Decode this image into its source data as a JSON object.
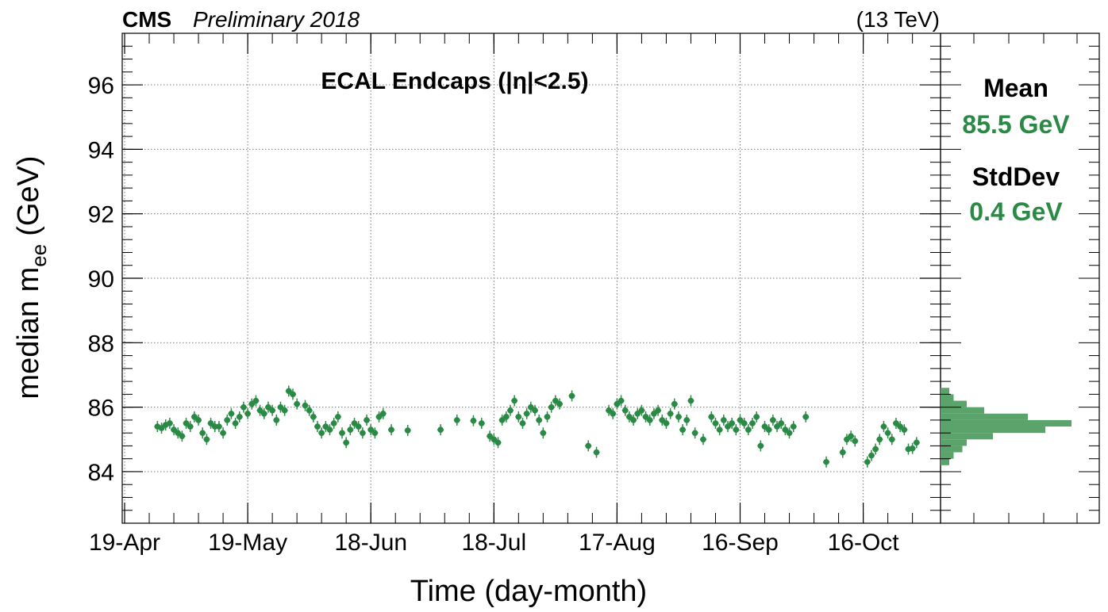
{
  "header": {
    "experiment": "CMS",
    "status": "Preliminary 2018",
    "energy": "(13 TeV)"
  },
  "chart_data": {
    "type": "scatter",
    "title": "ECAL Endcaps (|η|<2.5)",
    "xlabel": "Time (day-month)",
    "ylabel_main": "median m",
    "ylabel_sub": "ee",
    "ylabel_unit": "(GeV)",
    "x_ticks": [
      {
        "date": "2018-04-19",
        "label": "19-Apr"
      },
      {
        "date": "2018-05-19",
        "label": "19-May"
      },
      {
        "date": "2018-06-18",
        "label": "18-Jun"
      },
      {
        "date": "2018-07-18",
        "label": "18-Jul"
      },
      {
        "date": "2018-08-17",
        "label": "17-Aug"
      },
      {
        "date": "2018-09-16",
        "label": "16-Sep"
      },
      {
        "date": "2018-10-16",
        "label": "16-Oct"
      }
    ],
    "xlim": [
      "2018-04-19",
      "2018-10-29"
    ],
    "ylim": [
      82.4,
      97.6
    ],
    "y_ticks": [
      84,
      86,
      88,
      90,
      92,
      94,
      96
    ],
    "grid": true,
    "series": [
      {
        "color": "#2a8a45",
        "points": [
          {
            "x": "2018-04-27",
            "y": 85.4
          },
          {
            "x": "2018-04-28",
            "y": 85.35
          },
          {
            "x": "2018-04-29",
            "y": 85.45
          },
          {
            "x": "2018-04-30",
            "y": 85.5
          },
          {
            "x": "2018-05-01",
            "y": 85.3
          },
          {
            "x": "2018-05-02",
            "y": 85.2
          },
          {
            "x": "2018-05-03",
            "y": 85.1
          },
          {
            "x": "2018-05-04",
            "y": 85.5
          },
          {
            "x": "2018-05-05",
            "y": 85.4
          },
          {
            "x": "2018-05-06",
            "y": 85.7
          },
          {
            "x": "2018-05-07",
            "y": 85.6
          },
          {
            "x": "2018-05-08",
            "y": 85.2
          },
          {
            "x": "2018-05-09",
            "y": 85.0
          },
          {
            "x": "2018-05-10",
            "y": 85.5
          },
          {
            "x": "2018-05-11",
            "y": 85.4
          },
          {
            "x": "2018-05-12",
            "y": 85.4
          },
          {
            "x": "2018-05-13",
            "y": 85.2
          },
          {
            "x": "2018-05-14",
            "y": 85.6
          },
          {
            "x": "2018-05-15",
            "y": 85.8
          },
          {
            "x": "2018-05-16",
            "y": 85.5
          },
          {
            "x": "2018-05-17",
            "y": 85.7
          },
          {
            "x": "2018-05-18",
            "y": 86.0
          },
          {
            "x": "2018-05-19",
            "y": 85.8
          },
          {
            "x": "2018-05-20",
            "y": 86.1
          },
          {
            "x": "2018-05-21",
            "y": 86.2
          },
          {
            "x": "2018-05-22",
            "y": 85.9
          },
          {
            "x": "2018-05-23",
            "y": 85.8
          },
          {
            "x": "2018-05-24",
            "y": 86.0
          },
          {
            "x": "2018-05-25",
            "y": 85.9
          },
          {
            "x": "2018-05-26",
            "y": 85.6
          },
          {
            "x": "2018-05-27",
            "y": 86.0
          },
          {
            "x": "2018-05-28",
            "y": 85.9
          },
          {
            "x": "2018-05-29",
            "y": 86.5
          },
          {
            "x": "2018-05-30",
            "y": 86.4
          },
          {
            "x": "2018-05-31",
            "y": 86.1
          },
          {
            "x": "2018-06-02",
            "y": 86.05
          },
          {
            "x": "2018-06-03",
            "y": 85.9
          },
          {
            "x": "2018-06-04",
            "y": 85.7
          },
          {
            "x": "2018-06-05",
            "y": 85.4
          },
          {
            "x": "2018-06-06",
            "y": 85.2
          },
          {
            "x": "2018-06-07",
            "y": 85.4
          },
          {
            "x": "2018-06-08",
            "y": 85.3
          },
          {
            "x": "2018-06-09",
            "y": 85.5
          },
          {
            "x": "2018-06-10",
            "y": 85.7
          },
          {
            "x": "2018-06-11",
            "y": 85.2
          },
          {
            "x": "2018-06-12",
            "y": 84.9
          },
          {
            "x": "2018-06-13",
            "y": 85.3
          },
          {
            "x": "2018-06-14",
            "y": 85.5
          },
          {
            "x": "2018-06-15",
            "y": 85.4
          },
          {
            "x": "2018-06-16",
            "y": 85.2
          },
          {
            "x": "2018-06-17",
            "y": 85.6
          },
          {
            "x": "2018-06-18",
            "y": 85.3
          },
          {
            "x": "2018-06-19",
            "y": 85.2
          },
          {
            "x": "2018-06-20",
            "y": 85.7
          },
          {
            "x": "2018-06-21",
            "y": 85.8
          },
          {
            "x": "2018-06-23",
            "y": 85.3
          },
          {
            "x": "2018-06-27",
            "y": 85.28
          },
          {
            "x": "2018-07-05",
            "y": 85.3
          },
          {
            "x": "2018-07-09",
            "y": 85.6
          },
          {
            "x": "2018-07-13",
            "y": 85.58
          },
          {
            "x": "2018-07-15",
            "y": 85.5
          },
          {
            "x": "2018-07-17",
            "y": 85.1
          },
          {
            "x": "2018-07-18",
            "y": 85.0
          },
          {
            "x": "2018-07-19",
            "y": 84.9
          },
          {
            "x": "2018-07-20",
            "y": 85.6
          },
          {
            "x": "2018-07-21",
            "y": 85.7
          },
          {
            "x": "2018-07-22",
            "y": 85.9
          },
          {
            "x": "2018-07-23",
            "y": 86.2
          },
          {
            "x": "2018-07-24",
            "y": 85.7
          },
          {
            "x": "2018-07-25",
            "y": 85.5
          },
          {
            "x": "2018-07-26",
            "y": 85.8
          },
          {
            "x": "2018-07-27",
            "y": 86.0
          },
          {
            "x": "2018-07-28",
            "y": 85.9
          },
          {
            "x": "2018-07-29",
            "y": 85.6
          },
          {
            "x": "2018-07-30",
            "y": 85.2
          },
          {
            "x": "2018-07-31",
            "y": 85.7
          },
          {
            "x": "2018-08-01",
            "y": 86.0
          },
          {
            "x": "2018-08-02",
            "y": 86.2
          },
          {
            "x": "2018-08-03",
            "y": 86.1
          },
          {
            "x": "2018-08-06",
            "y": 86.35
          },
          {
            "x": "2018-08-10",
            "y": 84.8
          },
          {
            "x": "2018-08-12",
            "y": 84.6
          },
          {
            "x": "2018-08-15",
            "y": 85.9
          },
          {
            "x": "2018-08-16",
            "y": 85.8
          },
          {
            "x": "2018-08-17",
            "y": 86.1
          },
          {
            "x": "2018-08-18",
            "y": 86.2
          },
          {
            "x": "2018-08-19",
            "y": 85.9
          },
          {
            "x": "2018-08-20",
            "y": 85.7
          },
          {
            "x": "2018-08-21",
            "y": 85.6
          },
          {
            "x": "2018-08-22",
            "y": 85.8
          },
          {
            "x": "2018-08-23",
            "y": 85.9
          },
          {
            "x": "2018-08-24",
            "y": 85.7
          },
          {
            "x": "2018-08-25",
            "y": 85.6
          },
          {
            "x": "2018-08-26",
            "y": 85.8
          },
          {
            "x": "2018-08-27",
            "y": 85.9
          },
          {
            "x": "2018-08-28",
            "y": 85.6
          },
          {
            "x": "2018-08-29",
            "y": 85.5
          },
          {
            "x": "2018-08-30",
            "y": 85.8
          },
          {
            "x": "2018-08-31",
            "y": 86.1
          },
          {
            "x": "2018-09-01",
            "y": 85.7
          },
          {
            "x": "2018-09-02",
            "y": 85.3
          },
          {
            "x": "2018-09-03",
            "y": 85.6
          },
          {
            "x": "2018-09-04",
            "y": 86.2
          },
          {
            "x": "2018-09-05",
            "y": 85.2
          },
          {
            "x": "2018-09-07",
            "y": 85.0
          },
          {
            "x": "2018-09-09",
            "y": 85.7
          },
          {
            "x": "2018-09-10",
            "y": 85.5
          },
          {
            "x": "2018-09-11",
            "y": 85.3
          },
          {
            "x": "2018-09-12",
            "y": 85.6
          },
          {
            "x": "2018-09-13",
            "y": 85.4
          },
          {
            "x": "2018-09-14",
            "y": 85.5
          },
          {
            "x": "2018-09-15",
            "y": 85.3
          },
          {
            "x": "2018-09-16",
            "y": 85.6
          },
          {
            "x": "2018-09-17",
            "y": 85.5
          },
          {
            "x": "2018-09-18",
            "y": 85.3
          },
          {
            "x": "2018-09-19",
            "y": 85.5
          },
          {
            "x": "2018-09-20",
            "y": 85.7
          },
          {
            "x": "2018-09-21",
            "y": 84.8
          },
          {
            "x": "2018-09-22",
            "y": 85.4
          },
          {
            "x": "2018-09-23",
            "y": 85.3
          },
          {
            "x": "2018-09-24",
            "y": 85.6
          },
          {
            "x": "2018-09-25",
            "y": 85.4
          },
          {
            "x": "2018-09-26",
            "y": 85.5
          },
          {
            "x": "2018-09-27",
            "y": 85.3
          },
          {
            "x": "2018-09-28",
            "y": 85.2
          },
          {
            "x": "2018-09-29",
            "y": 85.4
          },
          {
            "x": "2018-10-02",
            "y": 85.7
          },
          {
            "x": "2018-10-07",
            "y": 84.3
          },
          {
            "x": "2018-10-11",
            "y": 84.6
          },
          {
            "x": "2018-10-12",
            "y": 85.0
          },
          {
            "x": "2018-10-13",
            "y": 85.1
          },
          {
            "x": "2018-10-14",
            "y": 84.95
          },
          {
            "x": "2018-10-17",
            "y": 84.3
          },
          {
            "x": "2018-10-18",
            "y": 84.5
          },
          {
            "x": "2018-10-19",
            "y": 84.7
          },
          {
            "x": "2018-10-20",
            "y": 85.0
          },
          {
            "x": "2018-10-21",
            "y": 85.4
          },
          {
            "x": "2018-10-22",
            "y": 85.2
          },
          {
            "x": "2018-10-23",
            "y": 85.0
          },
          {
            "x": "2018-10-24",
            "y": 85.5
          },
          {
            "x": "2018-10-25",
            "y": 85.4
          },
          {
            "x": "2018-10-26",
            "y": 85.3
          },
          {
            "x": "2018-10-27",
            "y": 84.7
          },
          {
            "x": "2018-10-28",
            "y": 84.72
          },
          {
            "x": "2018-10-29",
            "y": 84.9
          }
        ]
      }
    ],
    "side_histogram": {
      "stats": [
        {
          "label": "Mean",
          "value": "85.5 GeV"
        },
        {
          "label": "StdDev",
          "value": "0.4 GeV"
        }
      ],
      "color": "#5aa36b",
      "bins": [
        {
          "y": 84.3,
          "count": 2
        },
        {
          "y": 84.5,
          "count": 3
        },
        {
          "y": 84.7,
          "count": 5
        },
        {
          "y": 84.9,
          "count": 6
        },
        {
          "y": 85.1,
          "count": 12
        },
        {
          "y": 85.3,
          "count": 24
        },
        {
          "y": 85.5,
          "count": 30
        },
        {
          "y": 85.7,
          "count": 20
        },
        {
          "y": 85.9,
          "count": 10
        },
        {
          "y": 86.1,
          "count": 6
        },
        {
          "y": 86.3,
          "count": 3
        },
        {
          "y": 86.5,
          "count": 2
        }
      ]
    }
  }
}
